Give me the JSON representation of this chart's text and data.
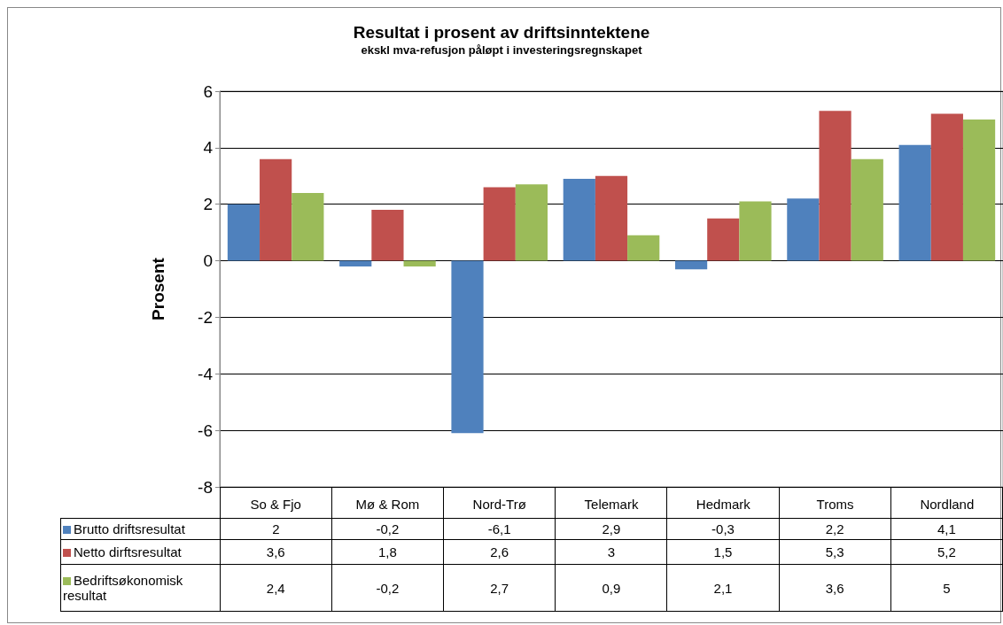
{
  "chart_data": {
    "type": "bar",
    "title": "Resultat i prosent av driftsinntektene",
    "subtitle": "ekskl mva-refusjon påløpt i investeringsregnskapet",
    "ylabel": "Prosent",
    "categories": [
      "So & Fjo",
      "Mø & Rom",
      "Nord-Trø",
      "Telemark",
      "Hedmark",
      "Troms",
      "Nordland"
    ],
    "series": [
      {
        "name": "Brutto driftsresultat",
        "color": "#4f81bd",
        "values": [
          2,
          -0.2,
          -6.1,
          2.9,
          -0.3,
          2.2,
          4.1
        ],
        "value_labels": [
          "2",
          "-0,2",
          "-6,1",
          "2,9",
          "-0,3",
          "2,2",
          "4,1"
        ]
      },
      {
        "name": "Netto dirftsresultat",
        "color": "#c0504d",
        "values": [
          3.6,
          1.8,
          2.6,
          3,
          1.5,
          5.3,
          5.2
        ],
        "value_labels": [
          "3,6",
          "1,8",
          "2,6",
          "3",
          "1,5",
          "5,3",
          "5,2"
        ]
      },
      {
        "name": "Bedriftsøkonomisk resultat",
        "color": "#9bbb59",
        "values": [
          2.4,
          -0.2,
          2.7,
          0.9,
          2.1,
          3.6,
          5
        ],
        "value_labels": [
          "2,4",
          "-0,2",
          "2,7",
          "0,9",
          "2,1",
          "3,6",
          "5"
        ]
      }
    ],
    "ylim": [
      -8,
      6
    ],
    "yticks": [
      -8,
      -6,
      -4,
      -2,
      0,
      2,
      4,
      6
    ],
    "grid": "y",
    "legend": "bottom"
  }
}
